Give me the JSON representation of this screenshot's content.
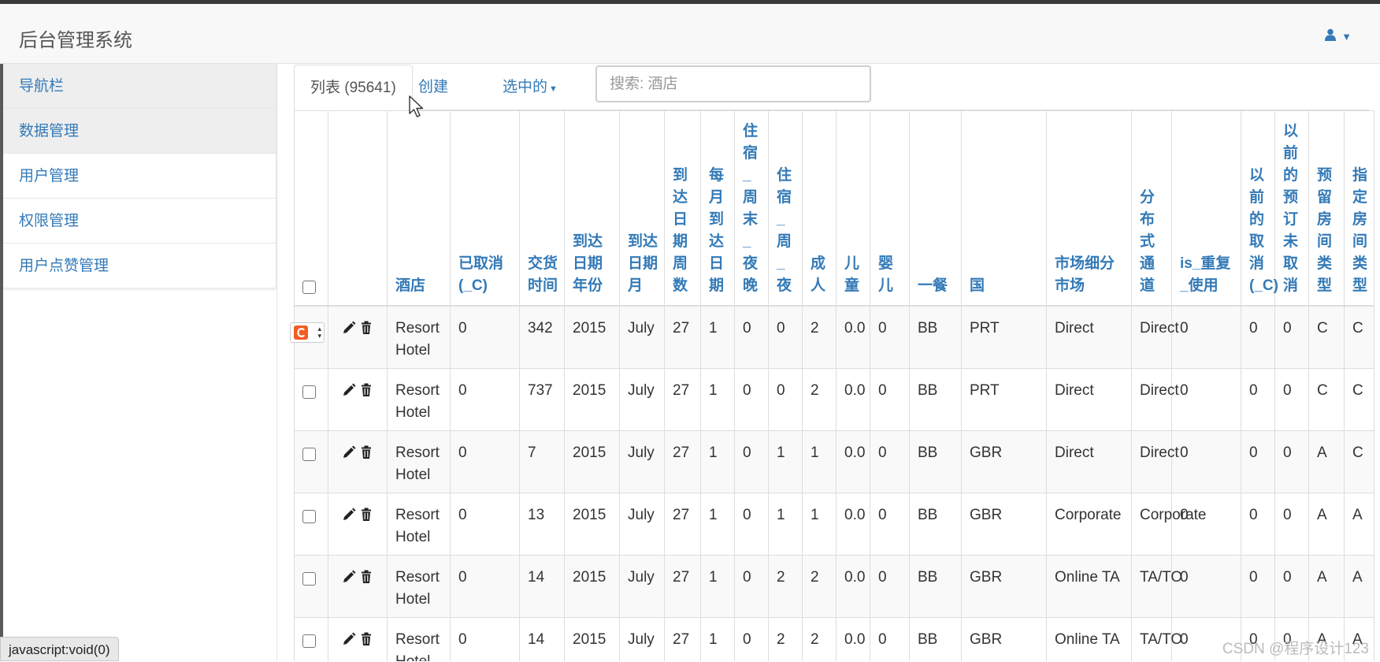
{
  "app": {
    "title": "后台管理系统"
  },
  "sidebar": {
    "items": [
      {
        "label": "导航栏"
      },
      {
        "label": "数据管理"
      },
      {
        "label": "用户管理"
      },
      {
        "label": "权限管理"
      },
      {
        "label": "用户点赞管理"
      }
    ]
  },
  "tabs": [
    {
      "label": "列表 (95641)"
    },
    {
      "label": "创建"
    },
    {
      "label": "选中的"
    }
  ],
  "search": {
    "placeholder": "搜索: 酒店"
  },
  "table": {
    "headers": [
      "酒店",
      "已取消(_C)",
      "交货时间",
      "到达日期年份",
      "到达日期月",
      "到达日期周数",
      "每月到达日期",
      "住宿_周末_夜晚",
      "住宿_周_夜",
      "成人",
      "儿童",
      "婴儿",
      "一餐",
      "国",
      "市场细分市场",
      "分布式通道",
      "is_重复_使用",
      "以前的取消(_C)",
      "以前的预订未取消",
      "预留房间类型",
      "指定房间类型"
    ],
    "rows": [
      [
        "Resort Hotel",
        "0",
        "342",
        "2015",
        "July",
        "27",
        "1",
        "0",
        "0",
        "2",
        "0.0",
        "0",
        "BB",
        "PRT",
        "Direct",
        "Direct",
        "0",
        "0",
        "0",
        "C",
        "C"
      ],
      [
        "Resort Hotel",
        "0",
        "737",
        "2015",
        "July",
        "27",
        "1",
        "0",
        "0",
        "2",
        "0.0",
        "0",
        "BB",
        "PRT",
        "Direct",
        "Direct",
        "0",
        "0",
        "0",
        "C",
        "C"
      ],
      [
        "Resort Hotel",
        "0",
        "7",
        "2015",
        "July",
        "27",
        "1",
        "0",
        "1",
        "1",
        "0.0",
        "0",
        "BB",
        "GBR",
        "Direct",
        "Direct",
        "0",
        "0",
        "0",
        "A",
        "C"
      ],
      [
        "Resort Hotel",
        "0",
        "13",
        "2015",
        "July",
        "27",
        "1",
        "0",
        "1",
        "1",
        "0.0",
        "0",
        "BB",
        "GBR",
        "Corporate",
        "Corporate",
        "0",
        "0",
        "0",
        "A",
        "A"
      ],
      [
        "Resort Hotel",
        "0",
        "14",
        "2015",
        "July",
        "27",
        "1",
        "0",
        "2",
        "2",
        "0.0",
        "0",
        "BB",
        "GBR",
        "Online TA",
        "TA/TO",
        "0",
        "0",
        "0",
        "A",
        "A"
      ],
      [
        "Resort Hotel",
        "0",
        "14",
        "2015",
        "July",
        "27",
        "1",
        "0",
        "2",
        "2",
        "0.0",
        "0",
        "BB",
        "GBR",
        "Online TA",
        "TA/TO",
        "0",
        "0",
        "0",
        "A",
        "A"
      ]
    ]
  },
  "status_bar": {
    "text": "javascript:void(0)"
  },
  "watermark": {
    "text": "CSDN @程序设计123"
  },
  "colors": {
    "link": "#337ab7",
    "header_bg": "#f8f8f8",
    "stripe": "#f9f9f9"
  },
  "icons": [
    "user-icon",
    "pencil-icon",
    "trash-icon",
    "mouse-cursor-icon",
    "csdn-logo"
  ]
}
